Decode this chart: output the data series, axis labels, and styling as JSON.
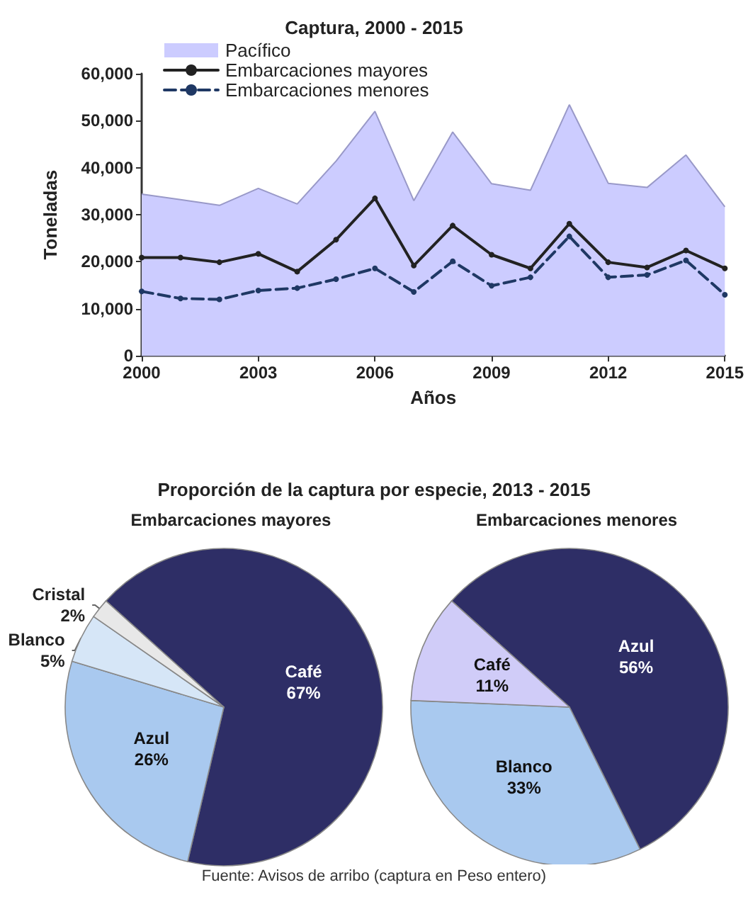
{
  "chart_data": [
    {
      "type": "area",
      "title": "Captura, 2000 - 2015",
      "xlabel": "Años",
      "ylabel": "Toneladas",
      "x": [
        2000,
        2001,
        2002,
        2003,
        2004,
        2005,
        2006,
        2007,
        2008,
        2009,
        2010,
        2011,
        2012,
        2013,
        2014,
        2015
      ],
      "xlim": [
        2000,
        2015
      ],
      "xticks": [
        2000,
        2003,
        2006,
        2009,
        2012,
        2015
      ],
      "ylim": [
        0,
        60000
      ],
      "yticks": [
        0,
        {
          "value": 10000,
          "label": "10,000"
        },
        {
          "value": 20000,
          "label": "20,000"
        },
        {
          "value": 30000,
          "label": "30,000"
        },
        {
          "value": 40000,
          "label": "40,000"
        },
        {
          "value": 50000,
          "label": "50,000"
        },
        {
          "value": 60000,
          "label": "60,000"
        }
      ],
      "grid": false,
      "legend": "top left",
      "series": [
        {
          "name": "Pacífico",
          "type": "area",
          "color": "#ccccff",
          "values": [
            34400,
            33200,
            32000,
            35600,
            32300,
            41400,
            52000,
            33000,
            47600,
            36600,
            35200,
            53400,
            36700,
            35800,
            42700,
            31700
          ]
        },
        {
          "name": "Embarcaciones mayores",
          "type": "line",
          "color": "#222222",
          "marker": "circle",
          "line_style": "solid",
          "values": [
            20900,
            20900,
            19900,
            21700,
            17900,
            24700,
            33500,
            19200,
            27700,
            21500,
            18600,
            28100,
            19900,
            18800,
            22400,
            18600
          ]
        },
        {
          "name": "Embarcaciones menores",
          "type": "line",
          "color": "#1f3864",
          "marker": "circle",
          "line_style": "dashed",
          "values": [
            13700,
            12200,
            12000,
            13900,
            14400,
            16300,
            18600,
            13600,
            20100,
            14900,
            16700,
            25400,
            16700,
            17200,
            20300,
            13000
          ]
        }
      ]
    },
    {
      "type": "pie",
      "title": "Proporción de la captura por especie, 2013 - 2015",
      "subtitle": "Embarcaciones mayores",
      "categories": [
        "Café",
        "Azul",
        "Blanco",
        "Cristal"
      ],
      "values": [
        67,
        26,
        5,
        2
      ],
      "value_labels": [
        "67%",
        "26%",
        "5%",
        "2%"
      ],
      "colors": [
        "#2e2e66",
        "#a9c9ef",
        "#d6e6f7",
        "#e8e8e8"
      ],
      "annotations": [
        "Fuente: Avisos de arribo (captura en Peso entero)"
      ]
    },
    {
      "type": "pie",
      "title": "Embarcaciones menores",
      "categories": [
        "Azul",
        "Blanco",
        "Café"
      ],
      "values": [
        56,
        33,
        11
      ],
      "value_labels": [
        "56%",
        "33%",
        "11%"
      ],
      "colors": [
        "#2e2e66",
        "#a9c9ef",
        "#d0ccf8"
      ]
    }
  ]
}
